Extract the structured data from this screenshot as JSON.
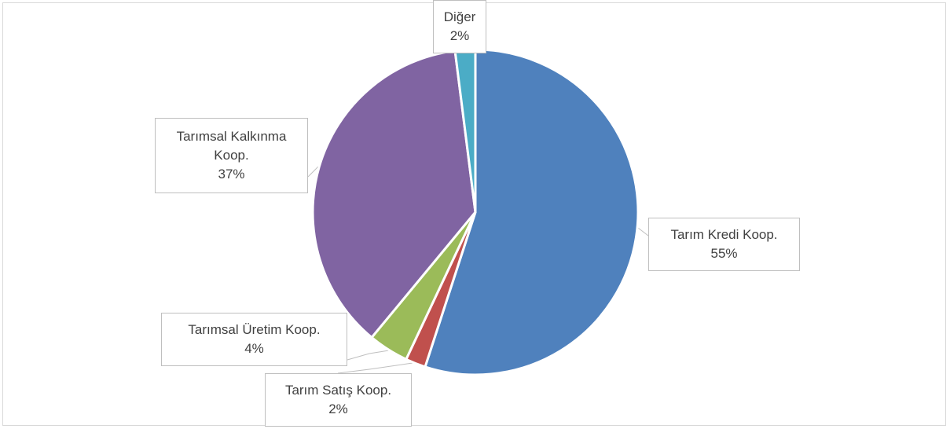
{
  "chart_data": {
    "type": "pie",
    "categories": [
      "Tarım Kredi Koop.",
      "Tarım Satış Koop.",
      "Tarımsal Üretim Koop.",
      "Tarımsal Kalkınma Koop.",
      "Diğer"
    ],
    "values": [
      55,
      2,
      4,
      37,
      2
    ],
    "value_labels": [
      "55%",
      "2%",
      "4%",
      "37%",
      "2%"
    ],
    "colors": [
      "#4f81bd",
      "#c0504d",
      "#9bbb59",
      "#8064a2",
      "#4bacc6"
    ]
  }
}
